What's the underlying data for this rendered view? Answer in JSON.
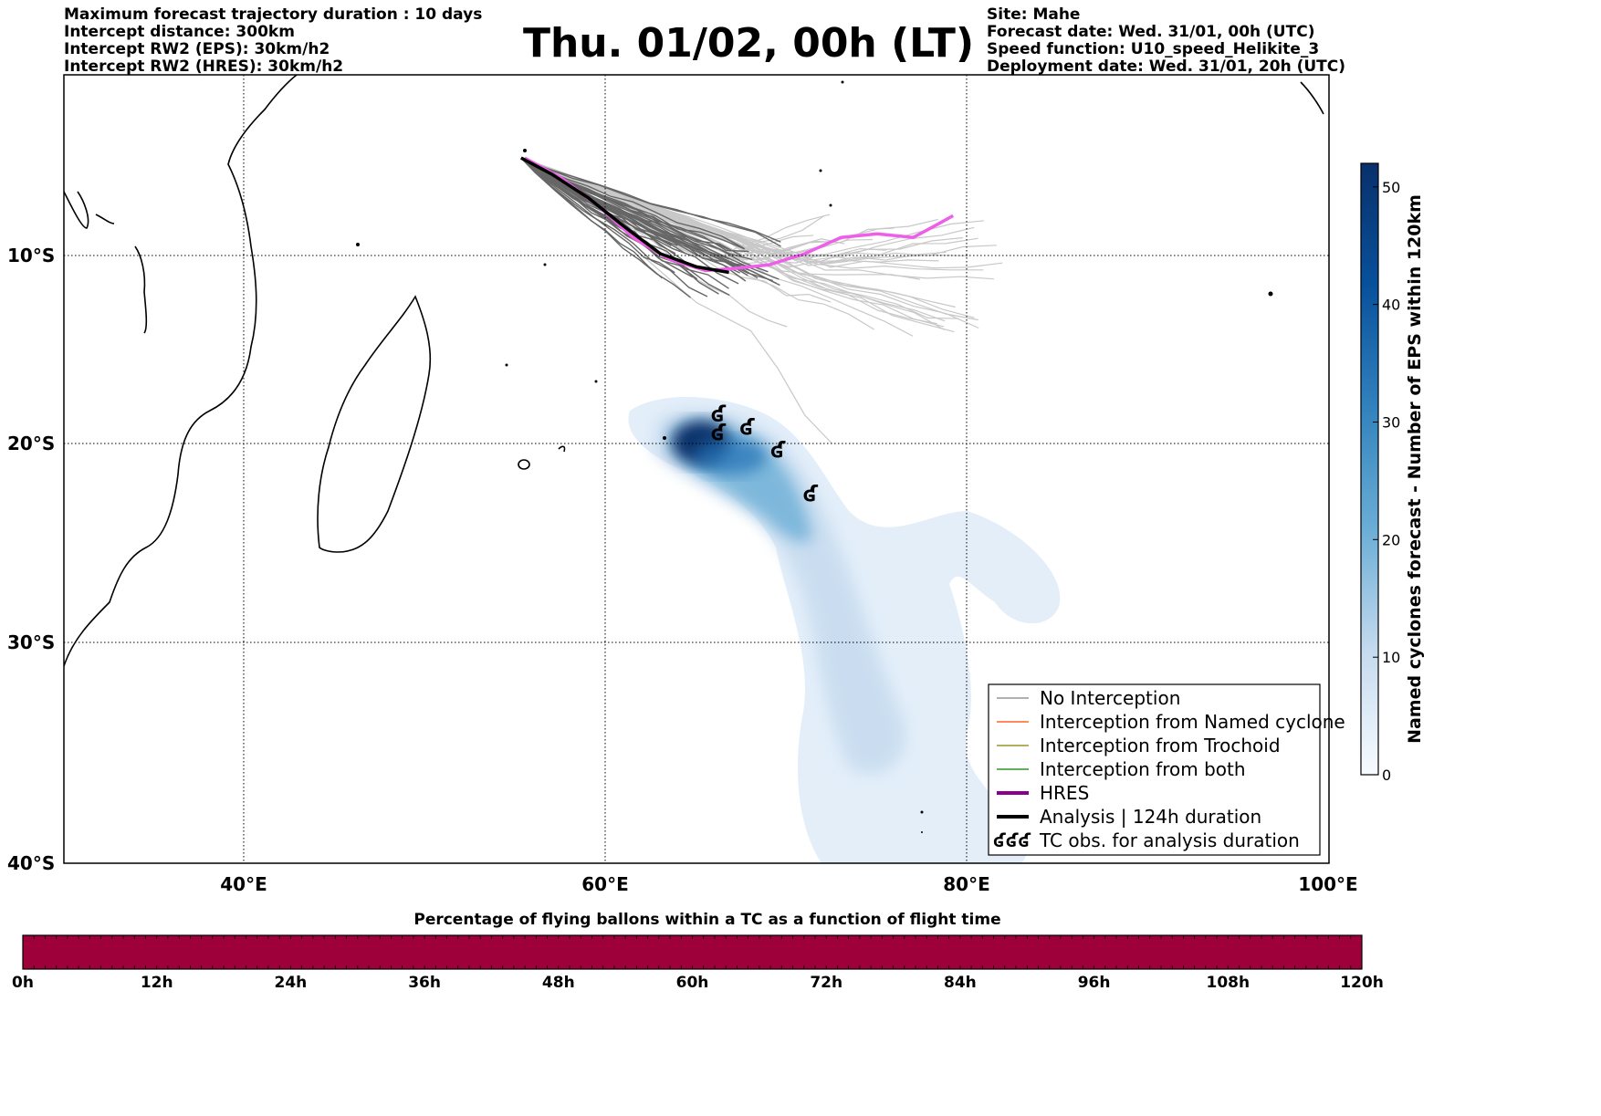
{
  "header_left": {
    "line1": "Maximum forecast trajectory duration : 10 days",
    "line2": "Intercept distance: 300km",
    "line3": "Intercept RW2 (EPS):  30km/h2",
    "line4": "Intercept RW2 (HRES): 30km/h2"
  },
  "title": "Thu. 01/02, 00h (LT)",
  "header_right": {
    "line1": "Site: Mahe",
    "line2": "Forecast date: Wed. 31/01, 00h (UTC)",
    "line3": "Speed function: U10_speed_Helikite_3",
    "line4": "Deployment date: Wed. 31/01, 20h (UTC)"
  },
  "map": {
    "lon_range": [
      30,
      100
    ],
    "lat_range": [
      -40,
      0
    ],
    "lat_labels": [
      "10°S",
      "20°S",
      "30°S",
      "40°S"
    ],
    "lon_labels": [
      "40°E",
      "60°E",
      "80°E",
      "100°E"
    ],
    "colors": {
      "eps_trajectory_dark": "#666666",
      "eps_trajectory_light": "#c8c8c8",
      "hres": "#ee5ee9",
      "analysis": "#000000",
      "density_max": "#08306b"
    },
    "analysis_track": [
      [
        55.3,
        -4.6
      ],
      [
        57,
        -5.5
      ],
      [
        59,
        -6.8
      ],
      [
        61,
        -8.4
      ],
      [
        63,
        -9.9
      ],
      [
        65,
        -10.6
      ],
      [
        66.8,
        -10.9
      ]
    ],
    "hres_track": [
      [
        55.5,
        -4.6
      ],
      [
        57.5,
        -5.7
      ],
      [
        59.5,
        -7.2
      ],
      [
        61.5,
        -9
      ],
      [
        63.5,
        -10.2
      ],
      [
        65.5,
        -10.8
      ],
      [
        67,
        -10.7
      ],
      [
        69,
        -10.5
      ],
      [
        71,
        -9.9
      ],
      [
        73,
        -9
      ],
      [
        75,
        -8.8
      ],
      [
        77,
        -9
      ],
      [
        78.3,
        -8.3
      ],
      [
        79.2,
        -7.8
      ]
    ],
    "tc_observations": [
      [
        66.2,
        -18.5
      ],
      [
        66.2,
        -19.5
      ],
      [
        67.8,
        -19.2
      ],
      [
        69.5,
        -20.4
      ],
      [
        71.3,
        -22.6
      ]
    ]
  },
  "colorbar_right": {
    "label": "Named cyclones forecast - Number of EPS within 120km",
    "ticks": [
      "0",
      "10",
      "20",
      "30",
      "40",
      "50"
    ],
    "max": 52
  },
  "legend": {
    "items": [
      {
        "label": "No Interception",
        "color": "#808080"
      },
      {
        "label": "Interception from Named cyclone",
        "color": "#ff4500"
      },
      {
        "label": "Interception from Trochoid",
        "color": "#808000"
      },
      {
        "label": "Interception from both",
        "color": "#008000"
      },
      {
        "label": "HRES",
        "color": "#8b008b"
      },
      {
        "label": "Analysis | 124h duration",
        "color": "#000000"
      },
      {
        "label": "TC obs. for analysis duration",
        "color": "#000000",
        "symbol": "ʛʛʛ"
      }
    ]
  },
  "bottom_bar": {
    "title": "Percentage of flying ballons within a TC as a function of flight time",
    "color": "#9e003a",
    "ticks": [
      "0h",
      "12h",
      "24h",
      "36h",
      "48h",
      "60h",
      "72h",
      "84h",
      "96h",
      "108h",
      "120h"
    ]
  }
}
